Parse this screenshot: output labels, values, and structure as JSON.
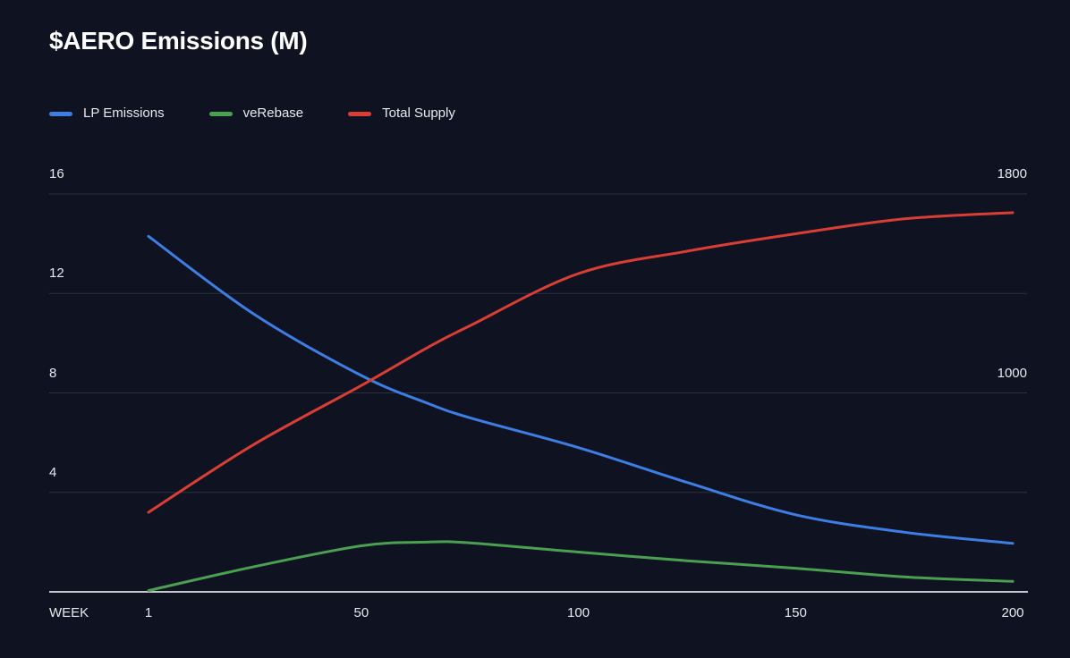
{
  "page": {
    "title": "$AERO Emissions (M)"
  },
  "colors": {
    "background": "#0f1221",
    "grid_line": "#2c2f3f",
    "axis_line": "#c6c8ce",
    "tick_text": "#e8e9ed",
    "title_text": "#ffffff",
    "lp_emissions": "#3d7ee4",
    "ve_rebase": "#4aa050",
    "total_supply": "#d93e35"
  },
  "chart_data": {
    "type": "line",
    "title": "$AERO Emissions (M)",
    "x_axis_label": "WEEK",
    "x": [
      1,
      25,
      50,
      65,
      75,
      100,
      125,
      150,
      175,
      200
    ],
    "x_ticks": [
      {
        "value": 1,
        "label": "1"
      },
      {
        "value": 50,
        "label": "50"
      },
      {
        "value": 100,
        "label": "100"
      },
      {
        "value": 150,
        "label": "150"
      },
      {
        "value": 200,
        "label": "200"
      }
    ],
    "left_axis": {
      "min": 0,
      "max": 16,
      "ticks": [
        16,
        12,
        8,
        4
      ]
    },
    "right_axis": {
      "min": 200,
      "max": 1800,
      "ticks": [
        1800,
        1000
      ]
    },
    "grid": "horizontal",
    "legend_position": "top-left",
    "series": [
      {
        "name": "LP Emissions",
        "axis": "left",
        "color": "#3d7ee4",
        "values": [
          14.3,
          11.2,
          8.7,
          7.6,
          7.0,
          5.8,
          4.4,
          3.1,
          2.4,
          1.95
        ]
      },
      {
        "name": "veRebase",
        "axis": "left",
        "color": "#4aa050",
        "values": [
          0.05,
          1.0,
          1.85,
          2.0,
          1.97,
          1.6,
          1.25,
          0.95,
          0.6,
          0.42
        ]
      },
      {
        "name": "Total Supply",
        "axis": "right",
        "color": "#d93e35",
        "values": [
          520,
          790,
          1030,
          1180,
          1270,
          1480,
          1570,
          1640,
          1700,
          1725
        ]
      }
    ]
  }
}
